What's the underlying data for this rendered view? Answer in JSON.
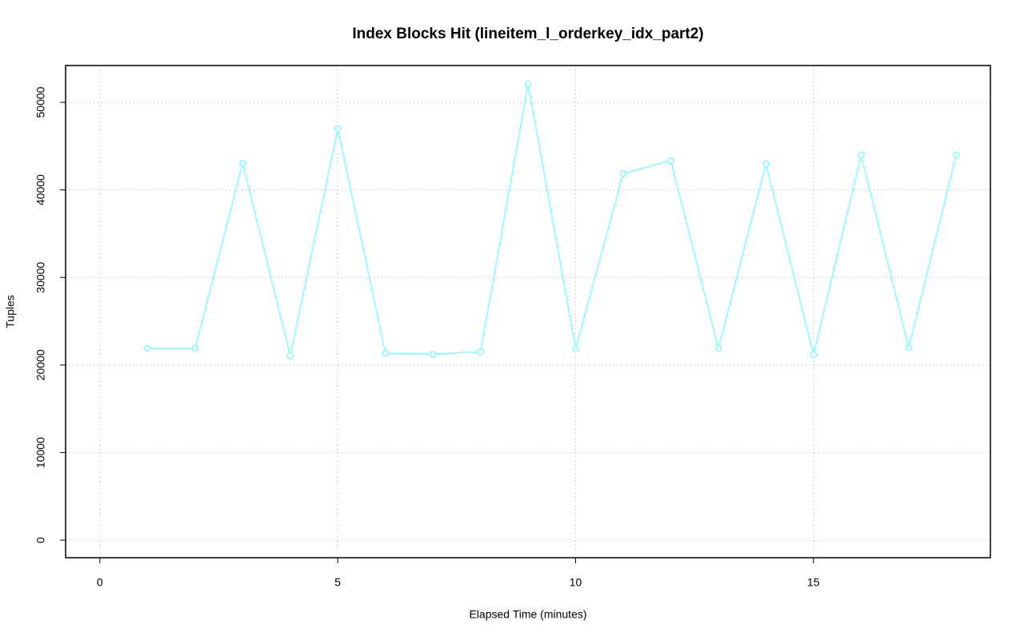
{
  "chart_data": {
    "type": "line",
    "title": "Index Blocks Hit (lineitem_l_orderkey_idx_part2)",
    "x_label": "Elapsed Time (minutes)",
    "y_label": "Tuples",
    "x": [
      1,
      2,
      3,
      4,
      5,
      6,
      7,
      8,
      9,
      10,
      11,
      12,
      13,
      14,
      15,
      16,
      17,
      18
    ],
    "series": [
      {
        "name": "Index Blocks Hit",
        "color": "#7fffff",
        "values": [
          21900,
          21900,
          43070,
          21080,
          47000,
          21350,
          21260,
          21530,
          52100,
          21900,
          41880,
          43340,
          21900,
          42970,
          21170,
          43980,
          21990,
          43980
        ]
      }
    ],
    "xlim": [
      -0.72,
      18.72
    ],
    "xticks": [
      0,
      5,
      10,
      15
    ],
    "ylim": [
      -2000,
      54200
    ],
    "yticks": [
      0,
      10000,
      20000,
      30000,
      40000,
      50000
    ],
    "grid": true
  }
}
